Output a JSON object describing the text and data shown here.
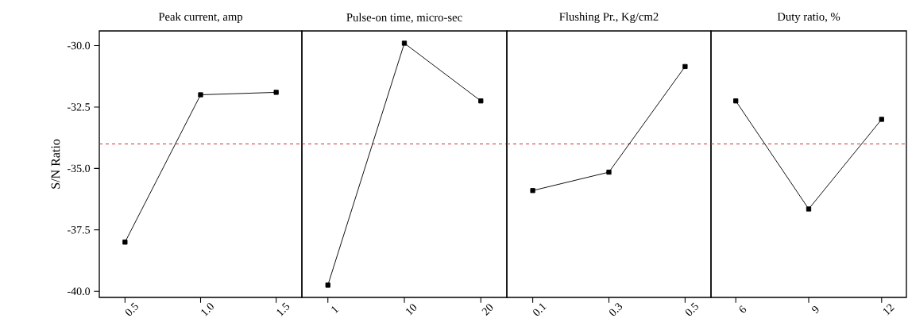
{
  "chart_data": [
    {
      "type": "line",
      "title": "Peak current, amp",
      "ylabel": "S/N Ratio",
      "categories": [
        "0.5",
        "1.0",
        "1.5"
      ],
      "values": [
        -38.0,
        -32.0,
        -31.9
      ],
      "color": "#000000",
      "marker": "square",
      "ylim": [
        -40.25,
        -29.4
      ],
      "yticks": [
        {
          "value": -40,
          "label": "-40.0"
        },
        {
          "value": -37.5,
          "label": "-37.5"
        },
        {
          "value": -35,
          "label": "-35.0"
        },
        {
          "value": -32.5,
          "label": "-32.5"
        },
        {
          "value": -30,
          "label": "-30.0"
        }
      ],
      "ref_lines": [
        {
          "axis": "y",
          "value": -34.0,
          "color": "#cc3333",
          "line_style": "dashed"
        }
      ]
    },
    {
      "type": "line",
      "title": "Pulse-on time, micro-sec",
      "categories": [
        "1",
        "10",
        "20"
      ],
      "values": [
        -39.75,
        -29.9,
        -32.25
      ],
      "color": "#000000",
      "marker": "square",
      "ylim": [
        -40.25,
        -29.4
      ],
      "tick_labels": "x",
      "ref_lines": [
        {
          "axis": "y",
          "value": -34.0,
          "color": "#cc3333",
          "line_style": "dashed"
        }
      ]
    },
    {
      "type": "line",
      "title": "Flushing Pr., Kg/cm2",
      "categories": [
        "0.1",
        "0.3",
        "0.5"
      ],
      "values": [
        -35.9,
        -35.15,
        -30.85
      ],
      "color": "#000000",
      "marker": "square",
      "ylim": [
        -40.25,
        -29.4
      ],
      "tick_labels": "x",
      "ref_lines": [
        {
          "axis": "y",
          "value": -34.0,
          "color": "#cc3333",
          "line_style": "dashed"
        }
      ]
    },
    {
      "type": "line",
      "title": "Duty ratio, %",
      "categories": [
        "6",
        "9",
        "12"
      ],
      "values": [
        -32.25,
        -36.65,
        -33.0
      ],
      "color": "#000000",
      "marker": "square",
      "ylim": [
        -40.25,
        -29.4
      ],
      "tick_labels": "x",
      "ref_lines": [
        {
          "axis": "y",
          "value": -34.0,
          "color": "#cc3333",
          "line_style": "dashed"
        }
      ]
    }
  ]
}
